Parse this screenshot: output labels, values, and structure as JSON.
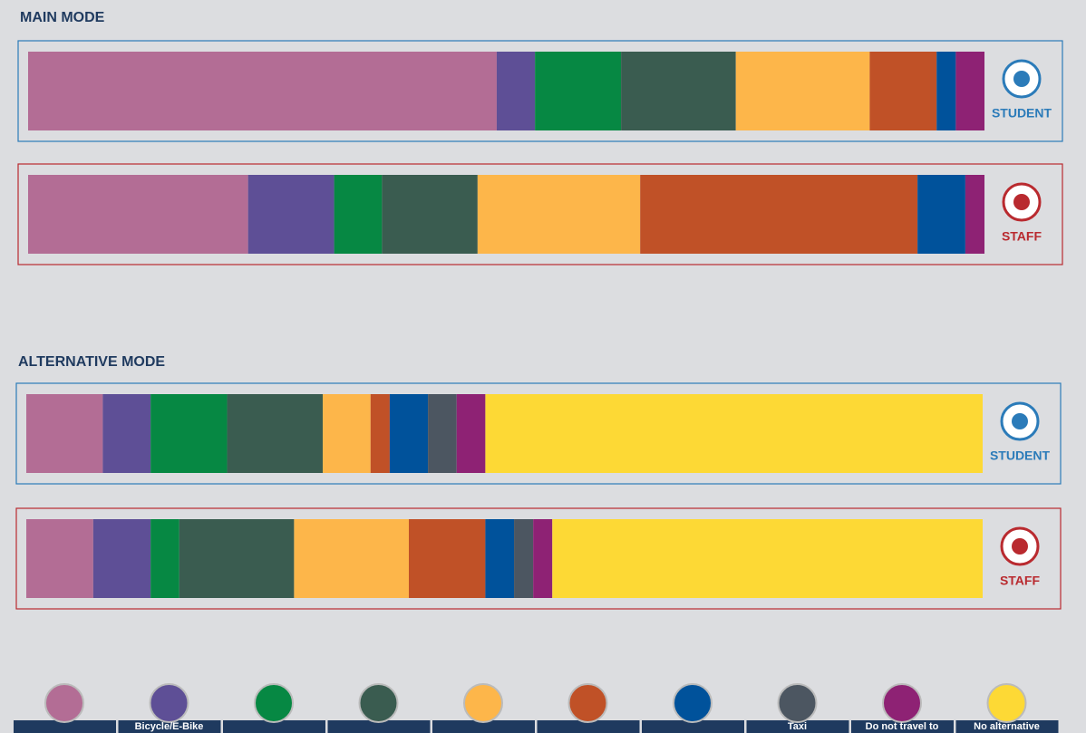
{
  "chart_data": [
    {
      "type": "bar",
      "stacked": true,
      "horizontal": true,
      "title": "MAIN MODE",
      "categories": [
        "STUDENT",
        "STAFF"
      ],
      "category_colors": [
        "#2b7bb9",
        "#b92a2f"
      ],
      "series": [
        {
          "name": null,
          "color": "#b36d95",
          "values": [
            49,
            23
          ]
        },
        {
          "name": "Bicycle/E-Bike",
          "color": "#5e4f96",
          "values": [
            4,
            9
          ]
        },
        {
          "name": null,
          "color": "#068843",
          "values": [
            9,
            5
          ]
        },
        {
          "name": null,
          "color": "#3a5c50",
          "values": [
            12,
            10
          ]
        },
        {
          "name": null,
          "color": "#fdb64a",
          "values": [
            14,
            17
          ]
        },
        {
          "name": null,
          "color": "#c05127",
          "values": [
            7,
            29
          ]
        },
        {
          "name": null,
          "color": "#00529b",
          "values": [
            2,
            5
          ]
        },
        {
          "name": "Taxi",
          "color": "#4c5661",
          "values": [
            0,
            0
          ]
        },
        {
          "name": "Do not travel to",
          "color": "#8e2274",
          "values": [
            3,
            2
          ]
        },
        {
          "name": "No alternative",
          "color": "#fdd935",
          "values": [
            0,
            0
          ]
        }
      ]
    },
    {
      "type": "bar",
      "stacked": true,
      "horizontal": true,
      "title": "ALTERNATIVE MODE",
      "categories": [
        "STUDENT",
        "STAFF"
      ],
      "series": [
        {
          "values": [
            8,
            7
          ]
        },
        {
          "values": [
            5,
            6
          ]
        },
        {
          "values": [
            8,
            3
          ]
        },
        {
          "values": [
            10,
            12
          ]
        },
        {
          "values": [
            5,
            12
          ]
        },
        {
          "values": [
            2,
            8
          ]
        },
        {
          "values": [
            4,
            3
          ]
        },
        {
          "values": [
            3,
            2
          ]
        },
        {
          "values": [
            3,
            2
          ]
        },
        {
          "values": [
            52,
            45
          ]
        }
      ]
    }
  ]
}
